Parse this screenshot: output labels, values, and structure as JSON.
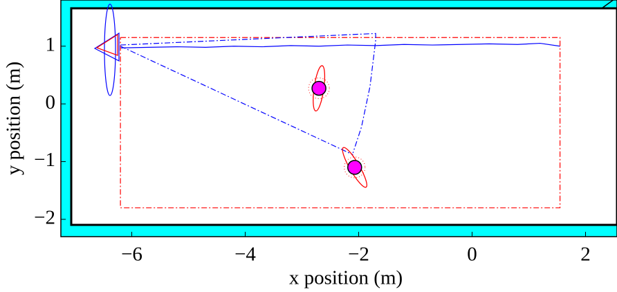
{
  "chart_data": {
    "type": "line",
    "x_label": "x position (m)",
    "y_label": "y position (m)",
    "xlim": [
      -7.25,
      2.5
    ],
    "ylim": [
      -2.3,
      1.8
    ],
    "xticks": [
      {
        "value": -6,
        "label": "−6"
      },
      {
        "value": -4,
        "label": "−4"
      },
      {
        "value": -2,
        "label": "−2"
      },
      0,
      2
    ],
    "yticks": [
      {
        "value": -2,
        "label": "−2"
      },
      {
        "value": -1,
        "label": "−1"
      },
      0,
      1
    ],
    "series": [
      {
        "style": "solid",
        "color": "#0000ff",
        "x": [
          -6.2,
          -5.7,
          -5.2,
          -4.7,
          -4.2,
          -3.7,
          -3.2,
          -2.7,
          -2.2,
          -1.7,
          -1.2,
          -0.7,
          -0.2,
          0.3,
          0.8,
          1.2,
          1.55
        ],
        "y": [
          0.97,
          0.98,
          0.99,
          0.98,
          1.0,
          0.99,
          1.01,
          1.0,
          1.02,
          1.01,
          1.03,
          1.02,
          1.03,
          1.04,
          1.03,
          1.05,
          1.0
        ]
      },
      {
        "style": "dashdot",
        "color": "#ff0000",
        "x": [
          -6.2,
          1.55,
          1.55,
          -6.2,
          -6.2
        ],
        "y": [
          1.15,
          1.15,
          -1.8,
          -1.8,
          1.15
        ]
      },
      {
        "style": "dashdot",
        "color": "#0000ff",
        "x": [
          -6.2,
          -2.1
        ],
        "y": [
          1.0,
          -0.88
        ]
      },
      {
        "style": "dashdot",
        "color": "#0000ff",
        "x": [
          -6.2,
          -1.7,
          -1.7,
          -1.8,
          -1.95,
          -2.1
        ],
        "y": [
          1.02,
          1.22,
          1.1,
          0.3,
          -0.4,
          -0.85
        ]
      },
      {
        "style": "marker",
        "color": "#ff00ff",
        "x": [
          -2.7,
          -2.07
        ],
        "y": [
          0.27,
          -1.1
        ]
      }
    ]
  }
}
